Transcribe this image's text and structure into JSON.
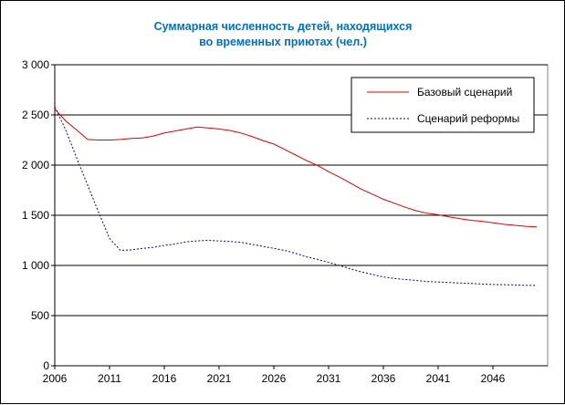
{
  "chart_data": {
    "type": "line",
    "title": "Суммарная численность детей, находящихся",
    "subtitle": "во временных приютах (чел.)",
    "xlabel": "",
    "ylabel": "",
    "x": [
      2006,
      2007,
      2008,
      2009,
      2010,
      2011,
      2012,
      2013,
      2014,
      2015,
      2016,
      2017,
      2018,
      2019,
      2020,
      2021,
      2022,
      2023,
      2024,
      2025,
      2026,
      2027,
      2028,
      2029,
      2030,
      2031,
      2032,
      2033,
      2034,
      2035,
      2036,
      2037,
      2038,
      2039,
      2040,
      2041,
      2042,
      2043,
      2044,
      2045,
      2046,
      2047,
      2048,
      2049,
      2050
    ],
    "xlim": [
      2006,
      2051
    ],
    "ylim": [
      0,
      3000
    ],
    "x_tick_labels": [
      "2006",
      "2011",
      "2016",
      "2021",
      "2026",
      "2031",
      "2036",
      "2041",
      "2046"
    ],
    "x_tick_values": [
      2006,
      2011,
      2016,
      2021,
      2026,
      2031,
      2036,
      2041,
      2046
    ],
    "y_tick_labels": [
      "0",
      "500",
      "1 000",
      "1 500",
      "2 000",
      "2 500",
      "3 000"
    ],
    "y_tick_values": [
      0,
      500,
      1000,
      1500,
      2000,
      2500,
      3000
    ],
    "grid": "horizontal",
    "legend_position": "top-right",
    "series": [
      {
        "name": "Базовый сценарий",
        "color": "#e00000",
        "style": "solid",
        "values": [
          2560,
          2440,
          2350,
          2255,
          2250,
          2250,
          2255,
          2265,
          2270,
          2290,
          2320,
          2340,
          2360,
          2380,
          2370,
          2360,
          2345,
          2320,
          2285,
          2245,
          2210,
          2155,
          2100,
          2045,
          1995,
          1935,
          1880,
          1820,
          1760,
          1710,
          1660,
          1620,
          1580,
          1545,
          1520,
          1505,
          1485,
          1465,
          1450,
          1440,
          1425,
          1410,
          1400,
          1390,
          1385
        ]
      },
      {
        "name": "Сценарий реформы",
        "color": "#000080",
        "style": "dotted",
        "values": [
          2580,
          2350,
          2070,
          1800,
          1530,
          1270,
          1150,
          1155,
          1170,
          1180,
          1200,
          1215,
          1235,
          1245,
          1250,
          1245,
          1240,
          1230,
          1210,
          1190,
          1170,
          1150,
          1120,
          1085,
          1060,
          1030,
          1000,
          965,
          935,
          910,
          885,
          870,
          860,
          850,
          840,
          835,
          830,
          825,
          820,
          815,
          810,
          808,
          805,
          802,
          800
        ]
      }
    ]
  }
}
